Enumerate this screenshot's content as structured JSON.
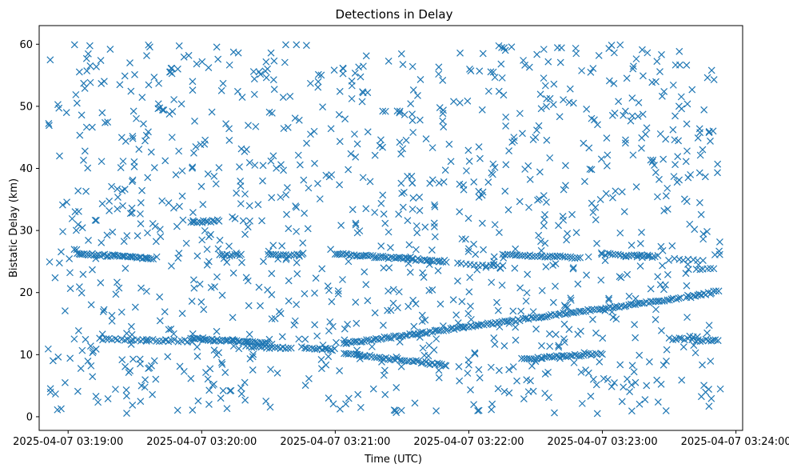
{
  "chart_data": {
    "type": "scatter",
    "title": "Detections in Delay",
    "xlabel": "Time (UTC)",
    "ylabel": "Bistatic Delay (km)",
    "x_range": [
      "2025-04-07 03:18:47",
      "2025-04-07 03:24:03"
    ],
    "ylim": [
      -2.2,
      63
    ],
    "x_ticks": [
      "2025-04-07 03:19:00",
      "2025-04-07 03:20:00",
      "2025-04-07 03:21:00",
      "2025-04-07 03:22:00",
      "2025-04-07 03:23:00",
      "2025-04-07 03:24:00"
    ],
    "y_ticks": [
      "0",
      "10",
      "20",
      "30",
      "40",
      "50",
      "60"
    ],
    "y_tick_values": [
      0,
      10,
      20,
      30,
      40,
      50,
      60
    ],
    "marker": "x",
    "marker_color": "#1f77b4",
    "grid": false,
    "series": [
      {
        "tracks": [
          {
            "t_start": "2025-04-07 03:19:04",
            "t_end": "2025-04-07 03:19:38",
            "y_start": 26.3,
            "y_end": 25.5,
            "n": 40
          },
          {
            "t_start": "2025-04-07 03:19:14",
            "t_end": "2025-04-07 03:19:55",
            "y_start": 12.5,
            "y_end": 12.2,
            "n": 30
          },
          {
            "t_start": "2025-04-07 03:19:55",
            "t_end": "2025-04-07 03:20:30",
            "y_start": 12.6,
            "y_end": 11.8,
            "n": 40
          },
          {
            "t_start": "2025-04-07 03:19:55",
            "t_end": "2025-04-07 03:20:08",
            "y_start": 31.3,
            "y_end": 31.6,
            "n": 14
          },
          {
            "t_start": "2025-04-07 03:20:08",
            "t_end": "2025-04-07 03:20:18",
            "y_start": 26.0,
            "y_end": 26.0,
            "n": 10
          },
          {
            "t_start": "2025-04-07 03:20:20",
            "t_end": "2025-04-07 03:20:40",
            "y_start": 11.3,
            "y_end": 11.0,
            "n": 18
          },
          {
            "t_start": "2025-04-07 03:20:30",
            "t_end": "2025-04-07 03:20:45",
            "y_start": 26.2,
            "y_end": 26.0,
            "n": 14
          },
          {
            "t_start": "2025-04-07 03:20:45",
            "t_end": "2025-04-07 03:21:00",
            "y_start": 11.2,
            "y_end": 10.8,
            "n": 14
          },
          {
            "t_start": "2025-04-07 03:21:00",
            "t_end": "2025-04-07 03:21:50",
            "y_start": 26.2,
            "y_end": 25.0,
            "n": 55
          },
          {
            "t_start": "2025-04-07 03:21:04",
            "t_end": "2025-04-07 03:23:35",
            "y_start": 11.8,
            "y_end": 19.1,
            "n": 150
          },
          {
            "t_start": "2025-04-07 03:21:04",
            "t_end": "2025-04-07 03:21:50",
            "y_start": 10.2,
            "y_end": 8.3,
            "n": 45
          },
          {
            "t_start": "2025-04-07 03:21:55",
            "t_end": "2025-04-07 03:22:15",
            "y_start": 24.6,
            "y_end": 24.4,
            "n": 12
          },
          {
            "t_start": "2025-04-07 03:22:15",
            "t_end": "2025-04-07 03:22:50",
            "y_start": 26.2,
            "y_end": 25.6,
            "n": 32
          },
          {
            "t_start": "2025-04-07 03:22:25",
            "t_end": "2025-04-07 03:23:00",
            "y_start": 9.3,
            "y_end": 10.2,
            "n": 35
          },
          {
            "t_start": "2025-04-07 03:23:00",
            "t_end": "2025-04-07 03:23:25",
            "y_start": 26.2,
            "y_end": 25.8,
            "n": 22
          },
          {
            "t_start": "2025-04-07 03:23:30",
            "t_end": "2025-04-07 03:23:40",
            "y_start": 12.5,
            "y_end": 12.5,
            "n": 8
          },
          {
            "t_start": "2025-04-07 03:23:38",
            "t_end": "2025-04-07 03:23:52",
            "y_start": 19.2,
            "y_end": 20.2,
            "n": 16
          },
          {
            "t_start": "2025-04-07 03:23:42",
            "t_end": "2025-04-07 03:23:52",
            "y_start": 12.3,
            "y_end": 12.3,
            "n": 10
          },
          {
            "t_start": "2025-04-07 03:23:30",
            "t_end": "2025-04-07 03:23:45",
            "y_start": 25.3,
            "y_end": 25.3,
            "n": 8
          },
          {
            "t_start": "2025-04-07 03:23:42",
            "t_end": "2025-04-07 03:23:50",
            "y_start": 23.8,
            "y_end": 23.8,
            "n": 6
          }
        ],
        "clutter": {
          "t_start": "2025-04-07 03:18:50",
          "t_end": "2025-04-07 03:23:53",
          "y_min": 0.5,
          "y_max": 60,
          "n": 1150
        }
      }
    ]
  }
}
